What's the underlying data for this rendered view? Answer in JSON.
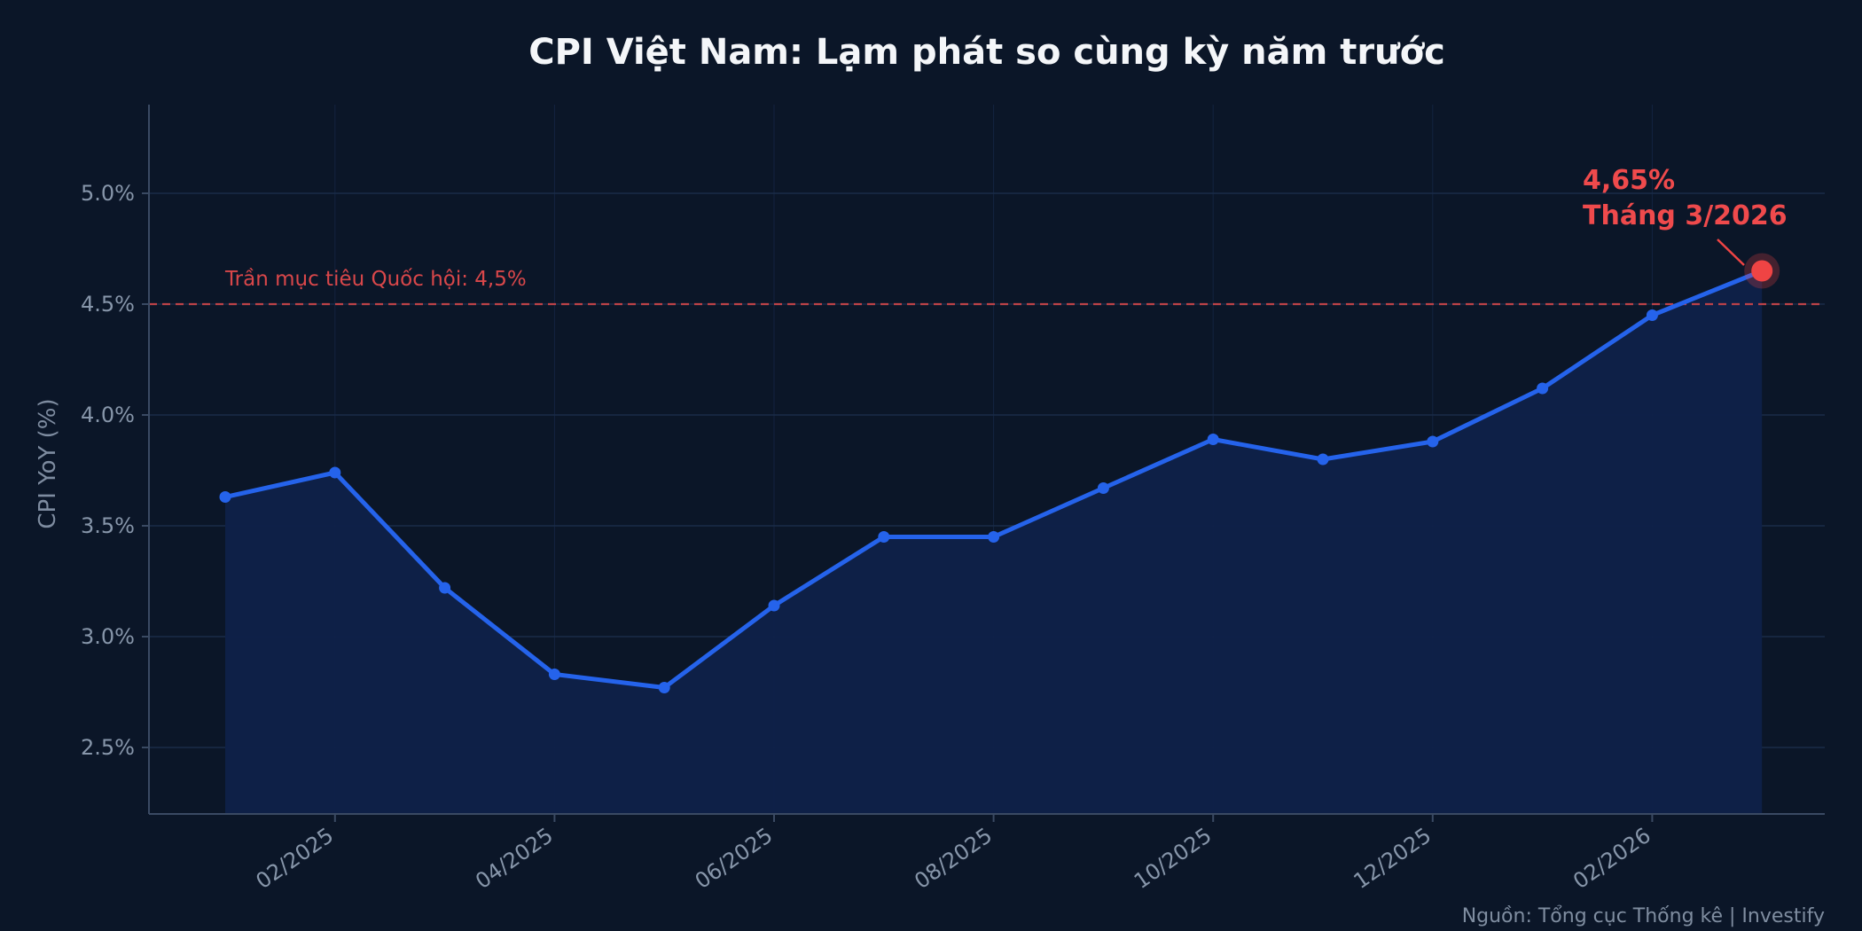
{
  "chart_data": {
    "type": "line",
    "title": "CPI Việt Nam: Lạm phát so cùng kỳ năm trước",
    "xlabel": "",
    "ylabel": "CPI YoY (%)",
    "x": [
      "01/2025",
      "02/2025",
      "03/2025",
      "04/2025",
      "05/2025",
      "06/2025",
      "07/2025",
      "08/2025",
      "09/2025",
      "10/2025",
      "11/2025",
      "12/2025",
      "01/2026",
      "02/2026",
      "03/2026"
    ],
    "series": [
      {
        "values": [
          3.63,
          3.74,
          3.22,
          2.83,
          2.77,
          3.14,
          3.45,
          3.45,
          3.67,
          3.89,
          3.8,
          3.88,
          4.12,
          4.45,
          4.65
        ]
      }
    ],
    "xtick_labels": [
      "02/2025",
      "04/2025",
      "06/2025",
      "08/2025",
      "10/2025",
      "12/2025",
      "02/2026"
    ],
    "xtick_indices": [
      1,
      3,
      5,
      7,
      9,
      11,
      13
    ],
    "yticks": [
      2.5,
      3.0,
      3.5,
      4.0,
      4.5,
      5.0
    ],
    "ytick_labels": [
      "2.5%",
      "3.0%",
      "3.5%",
      "4.0%",
      "4.5%",
      "5.0%"
    ],
    "ylim": [
      2.2,
      5.4
    ],
    "grid": true,
    "reference_line": {
      "value": 4.5,
      "label": "Trần mục tiêu Quốc hội: 4,5%"
    },
    "annotation": {
      "value_text": "4,65%",
      "period_text": "Tháng 3/2026",
      "point_index": 14
    },
    "source": "Nguồn: Tổng cục Thống kê  |  Investify"
  },
  "colors": {
    "background": "#0b1628",
    "line": "#2563eb",
    "area": "#0f2149",
    "reference": "#d9474a",
    "highlight": "#ef4444",
    "grid": "#1a2c48",
    "axis": "#3a4a63"
  }
}
